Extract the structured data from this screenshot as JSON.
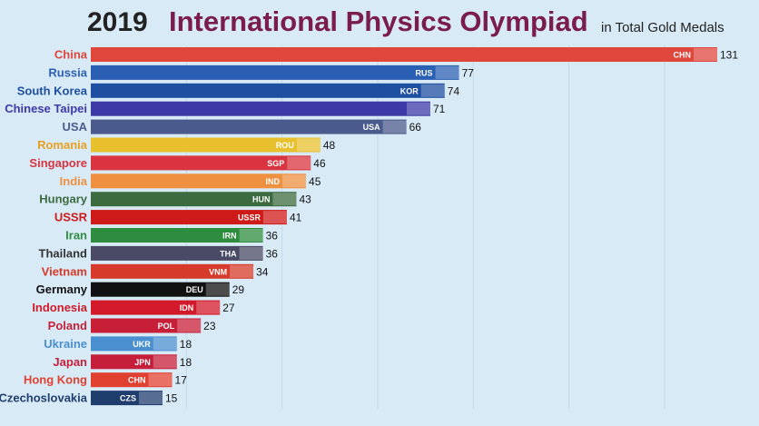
{
  "title_year": "2019",
  "title": "International Physics Olympiad",
  "subtitle": "in Total Gold Medals",
  "chart_data": {
    "type": "bar",
    "orientation": "horizontal",
    "title": "International Physics Olympiad",
    "year": "2019",
    "subtitle": "in Total Gold Medals",
    "categories": [
      "China",
      "Russia",
      "South Korea",
      "Chinese Taipei",
      "USA",
      "Romania",
      "Singapore",
      "India",
      "Hungary",
      "USSR",
      "Iran",
      "Thailand",
      "Vietnam",
      "Germany",
      "Indonesia",
      "Poland",
      "Ukraine",
      "Japan",
      "Hong Kong",
      "Czechoslovakia"
    ],
    "codes": [
      "CHN",
      "RUS",
      "KOR",
      "",
      "USA",
      "ROU",
      "SGP",
      "IND",
      "HUN",
      "USSR",
      "IRN",
      "THA",
      "VNM",
      "DEU",
      "IDN",
      "POL",
      "UKR",
      "JPN",
      "CHN",
      "CZS"
    ],
    "values": [
      131,
      77,
      74,
      71,
      66,
      48,
      46,
      45,
      43,
      41,
      36,
      36,
      34,
      29,
      27,
      23,
      18,
      18,
      17,
      15
    ],
    "bar_colors": [
      "#e0473c",
      "#2b5fb3",
      "#1f4fa0",
      "#3d3aa8",
      "#4a5a8c",
      "#e8c02e",
      "#d9343f",
      "#ee9040",
      "#3c6b3f",
      "#cf1a1a",
      "#2e8c3f",
      "#4a4a66",
      "#d63a2a",
      "#111111",
      "#d21a2a",
      "#c81f38",
      "#4a8fd0",
      "#c41e3a",
      "#e04030",
      "#1f3e6e"
    ],
    "label_colors": [
      "#e0473c",
      "#2b5fb3",
      "#1f4fa0",
      "#3d3aa8",
      "#4a5a8c",
      "#e8a020",
      "#d9343f",
      "#ee9040",
      "#3c6b3f",
      "#cf1a1a",
      "#2e8c3f",
      "#333333",
      "#d63a2a",
      "#111111",
      "#d21a2a",
      "#c81f38",
      "#4a8fd0",
      "#c41e3a",
      "#e04030",
      "#1f3e6e"
    ],
    "xlim": [
      0,
      140
    ],
    "grid": true
  }
}
